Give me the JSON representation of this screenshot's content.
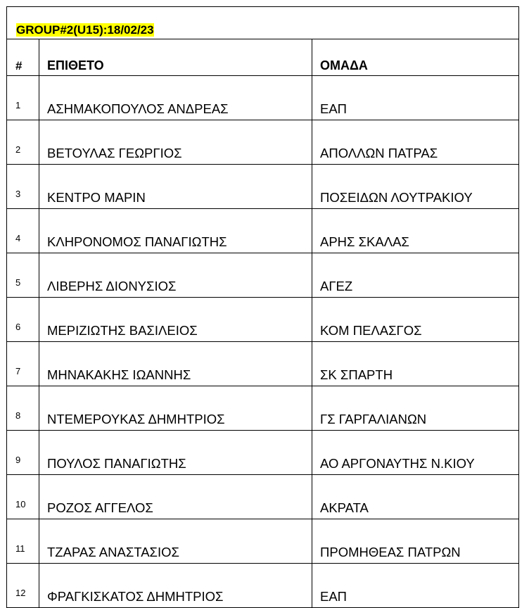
{
  "title": "GROUP#2(U15):18/02/23",
  "headers": {
    "number": "#",
    "surname": "ΕΠΙΘΕΤΟ",
    "team": "ΟΜΑΔΑ"
  },
  "highlight_color": "#ffff00",
  "rows": [
    {
      "n": "1",
      "name": "ΑΣΗΜΑΚΟΠΟΥΛΟΣ ΑΝΔΡΕΑΣ",
      "team": "ΕΑΠ"
    },
    {
      "n": "2",
      "name": "ΒΕΤΟΥΛΑΣ ΓΕΩΡΓΙΟΣ",
      "team": "ΑΠΟΛΛΩΝ ΠΑΤΡΑΣ"
    },
    {
      "n": "3",
      "name": "ΚΕΝΤΡΟ ΜΑΡΙΝ",
      "team": "ΠΟΣΕΙΔΩΝ ΛΟΥΤΡΑΚΙΟΥ"
    },
    {
      "n": "4",
      "name": "ΚΛΗΡΟΝΟΜΟΣ ΠΑΝΑΓΙΩΤΗΣ",
      "team": "ΑΡΗΣ ΣΚΑΛΑΣ"
    },
    {
      "n": "5",
      "name": "ΛΙΒΕΡΗΣ ΔΙΟΝΥΣΙΟΣ",
      "team": "ΑΓΕΖ"
    },
    {
      "n": "6",
      "name": "ΜΕΡΙΖΙΩΤΗΣ ΒΑΣΙΛΕΙΟΣ",
      "team": "ΚΟΜ ΠΕΛΑΣΓΟΣ"
    },
    {
      "n": "7",
      "name": "ΜΗΝΑΚΑΚΗΣ ΙΩΑΝΝΗΣ",
      "team": "ΣΚ ΣΠΑΡΤΗ"
    },
    {
      "n": "8",
      "name": "ΝΤΕΜΕΡΟΥΚΑΣ ΔΗΜΗΤΡΙΟΣ",
      "team": "ΓΣ ΓΑΡΓΑΛΙΑΝΩΝ"
    },
    {
      "n": "9",
      "name": "ΠΟΥΛΟΣ ΠΑΝΑΓΙΩΤΗΣ",
      "team": "ΑΟ ΑΡΓΟΝΑΥΤΗΣ Ν.ΚΙΟΥ"
    },
    {
      "n": "10",
      "name": "ΡΟΖΟΣ ΑΓΓΕΛΟΣ",
      "team": "ΑΚΡΑΤΑ"
    },
    {
      "n": "11",
      "name": "ΤΖΑΡΑΣ ΑΝΑΣΤΑΣΙΟΣ",
      "team": "ΠΡΟΜΗΘΕΑΣ ΠΑΤΡΩΝ"
    },
    {
      "n": "12",
      "name": "ΦΡΑΓΚΙΣΚΑΤΟΣ ΔΗΜΗΤΡΙΟΣ",
      "team": "ΕΑΠ"
    }
  ]
}
